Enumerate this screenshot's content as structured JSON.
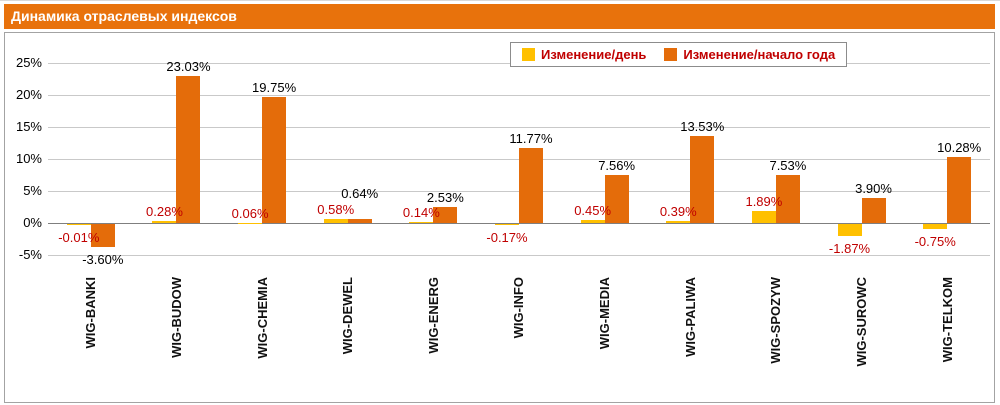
{
  "title": "Динамика отраслевых индексов",
  "colors": {
    "header_bg": "#E8720C",
    "day_bar": "#FFC000",
    "ytd_bar": "#E46C0A",
    "day_label": "#C00000",
    "ytd_label": "#000000",
    "legend_text": "#C00000",
    "grid": "#C9C9C9",
    "zero_axis": "#7F7F7F",
    "chart_border": "#A3A3A3"
  },
  "legend": [
    {
      "label": "Изменение/день",
      "swatch": "#FFC000"
    },
    {
      "label": "Изменение/начало года",
      "swatch": "#E46C0A"
    }
  ],
  "y_axis": {
    "ticks": [
      "25%",
      "20%",
      "15%",
      "10%",
      "5%",
      "0%",
      "-5%"
    ],
    "tick_values": [
      25,
      20,
      15,
      10,
      5,
      0,
      -5
    ],
    "min": -5,
    "max": 25
  },
  "chart_data": {
    "type": "bar",
    "title": "Динамика отраслевых индексов",
    "categories": [
      "WIG-BANKI",
      "WIG-BUDOW",
      "WIG-CHEMIA",
      "WIG-DEWEL",
      "WIG-ENERG",
      "WIG-INFO",
      "WIG-MEDIA",
      "WIG-PALIWA",
      "WIG-SPOZYW",
      "WIG-SUROWC",
      "WIG-TELKOM"
    ],
    "series": [
      {
        "name": "Изменение/день",
        "values": [
          -0.01,
          0.28,
          0.06,
          0.58,
          0.14,
          -0.17,
          0.45,
          0.39,
          1.89,
          -1.87,
          -0.75
        ],
        "labels": [
          "-0.01%",
          "0.28%",
          "0.06%",
          "0.58%",
          "0.14%",
          "-0.17%",
          "0.45%",
          "0.39%",
          "1.89%",
          "-1.87%",
          "-0.75%"
        ],
        "color": "#FFC000",
        "label_color": "#C00000"
      },
      {
        "name": "Изменение/начало года",
        "values": [
          -3.6,
          23.03,
          19.75,
          0.64,
          2.53,
          11.77,
          7.56,
          13.53,
          7.53,
          3.9,
          10.28
        ],
        "labels": [
          "-3.60%",
          "23.03%",
          "19.75%",
          "0.64%",
          "2.53%",
          "11.77%",
          "7.56%",
          "13.53%",
          "7.53%",
          "3.90%",
          "10.28%"
        ],
        "color": "#E46C0A",
        "label_color": "#000000"
      }
    ],
    "ylim": [
      -5,
      25
    ],
    "grid": true,
    "legend_position": "top-right"
  }
}
